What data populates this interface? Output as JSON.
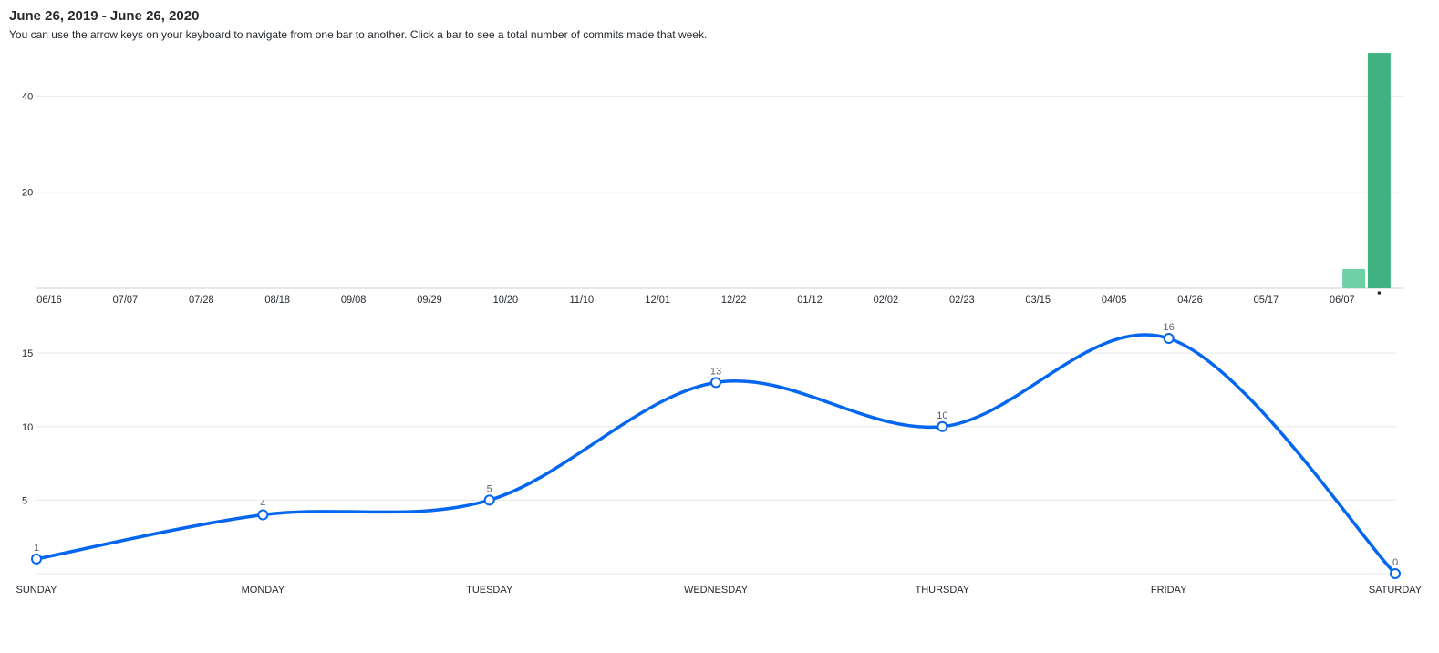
{
  "header": {
    "title": "June 26, 2019 - June 26, 2020",
    "subtitle": "You can use the arrow keys on your keyboard to navigate from one bar to another. Click a bar to see a total number of commits made that week."
  },
  "colors": {
    "bar_selected": "#3fb27f",
    "bar_other": "#6fcfa5",
    "line": "#0366f0",
    "grid": "#e8e8e8",
    "axis": "#d0d0d0"
  },
  "chart_data": [
    {
      "type": "bar",
      "x_tick_labels": [
        "06/16",
        "07/07",
        "07/28",
        "08/18",
        "09/08",
        "09/29",
        "10/20",
        "11/10",
        "12/01",
        "12/22",
        "01/12",
        "02/02",
        "02/23",
        "03/15",
        "04/05",
        "04/26",
        "05/17",
        "06/07"
      ],
      "yticks": [
        20,
        40
      ],
      "ylim": [
        0,
        50
      ],
      "grid": true,
      "weeks_total": 54,
      "values": [
        0,
        0,
        0,
        0,
        0,
        0,
        0,
        0,
        0,
        0,
        0,
        0,
        0,
        0,
        0,
        0,
        0,
        0,
        0,
        0,
        0,
        0,
        0,
        0,
        0,
        0,
        0,
        0,
        0,
        0,
        0,
        0,
        0,
        0,
        0,
        0,
        0,
        0,
        0,
        0,
        0,
        0,
        0,
        0,
        0,
        0,
        0,
        0,
        0,
        0,
        0,
        0,
        4,
        49
      ],
      "selected_index": 53
    },
    {
      "type": "line",
      "categories": [
        "SUNDAY",
        "MONDAY",
        "TUESDAY",
        "WEDNESDAY",
        "THURSDAY",
        "FRIDAY",
        "SATURDAY"
      ],
      "values": [
        1,
        4,
        5,
        13,
        10,
        16,
        0
      ],
      "yticks": [
        5,
        10,
        15
      ],
      "ylim": [
        0,
        16
      ],
      "grid": true,
      "data_labels": true
    }
  ]
}
